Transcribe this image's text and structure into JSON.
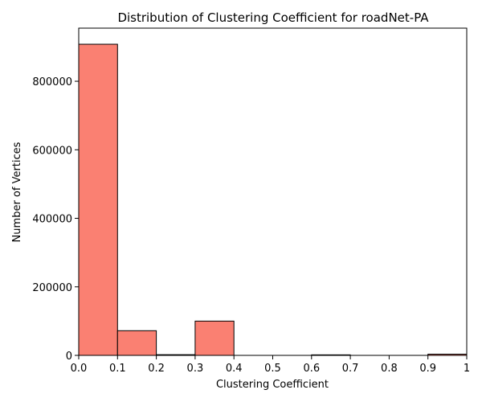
{
  "chart_data": {
    "type": "bar",
    "title": "Distribution of Clustering Coefficient for roadNet-PA",
    "xlabel": "Clustering Coefficient",
    "ylabel": "Number of Vertices",
    "bin_edges": [
      0.0,
      0.1,
      0.2,
      0.3,
      0.4,
      0.5,
      0.6,
      0.7,
      0.8,
      0.9,
      1.0
    ],
    "values": [
      908000,
      72000,
      2000,
      100000,
      0,
      0,
      1500,
      0,
      0,
      3500
    ],
    "xlim": [
      0,
      1
    ],
    "ylim": [
      0,
      955000
    ],
    "x_ticks": [
      0.0,
      0.1,
      0.2,
      0.3,
      0.4,
      0.5,
      0.6,
      0.7,
      0.8,
      0.9,
      1.0
    ],
    "x_tick_labels": [
      "0.0",
      "0.1",
      "0.2",
      "0.3",
      "0.4",
      "0.5",
      "0.6",
      "0.7",
      "0.8",
      "0.9",
      "1"
    ],
    "y_ticks": [
      0,
      200000,
      400000,
      600000,
      800000
    ],
    "y_tick_labels": [
      "0",
      "200000",
      "400000",
      "600000",
      "800000"
    ],
    "bar_color": "#fa8072",
    "edge_color": "#000000",
    "grid": false,
    "legend": "none"
  }
}
